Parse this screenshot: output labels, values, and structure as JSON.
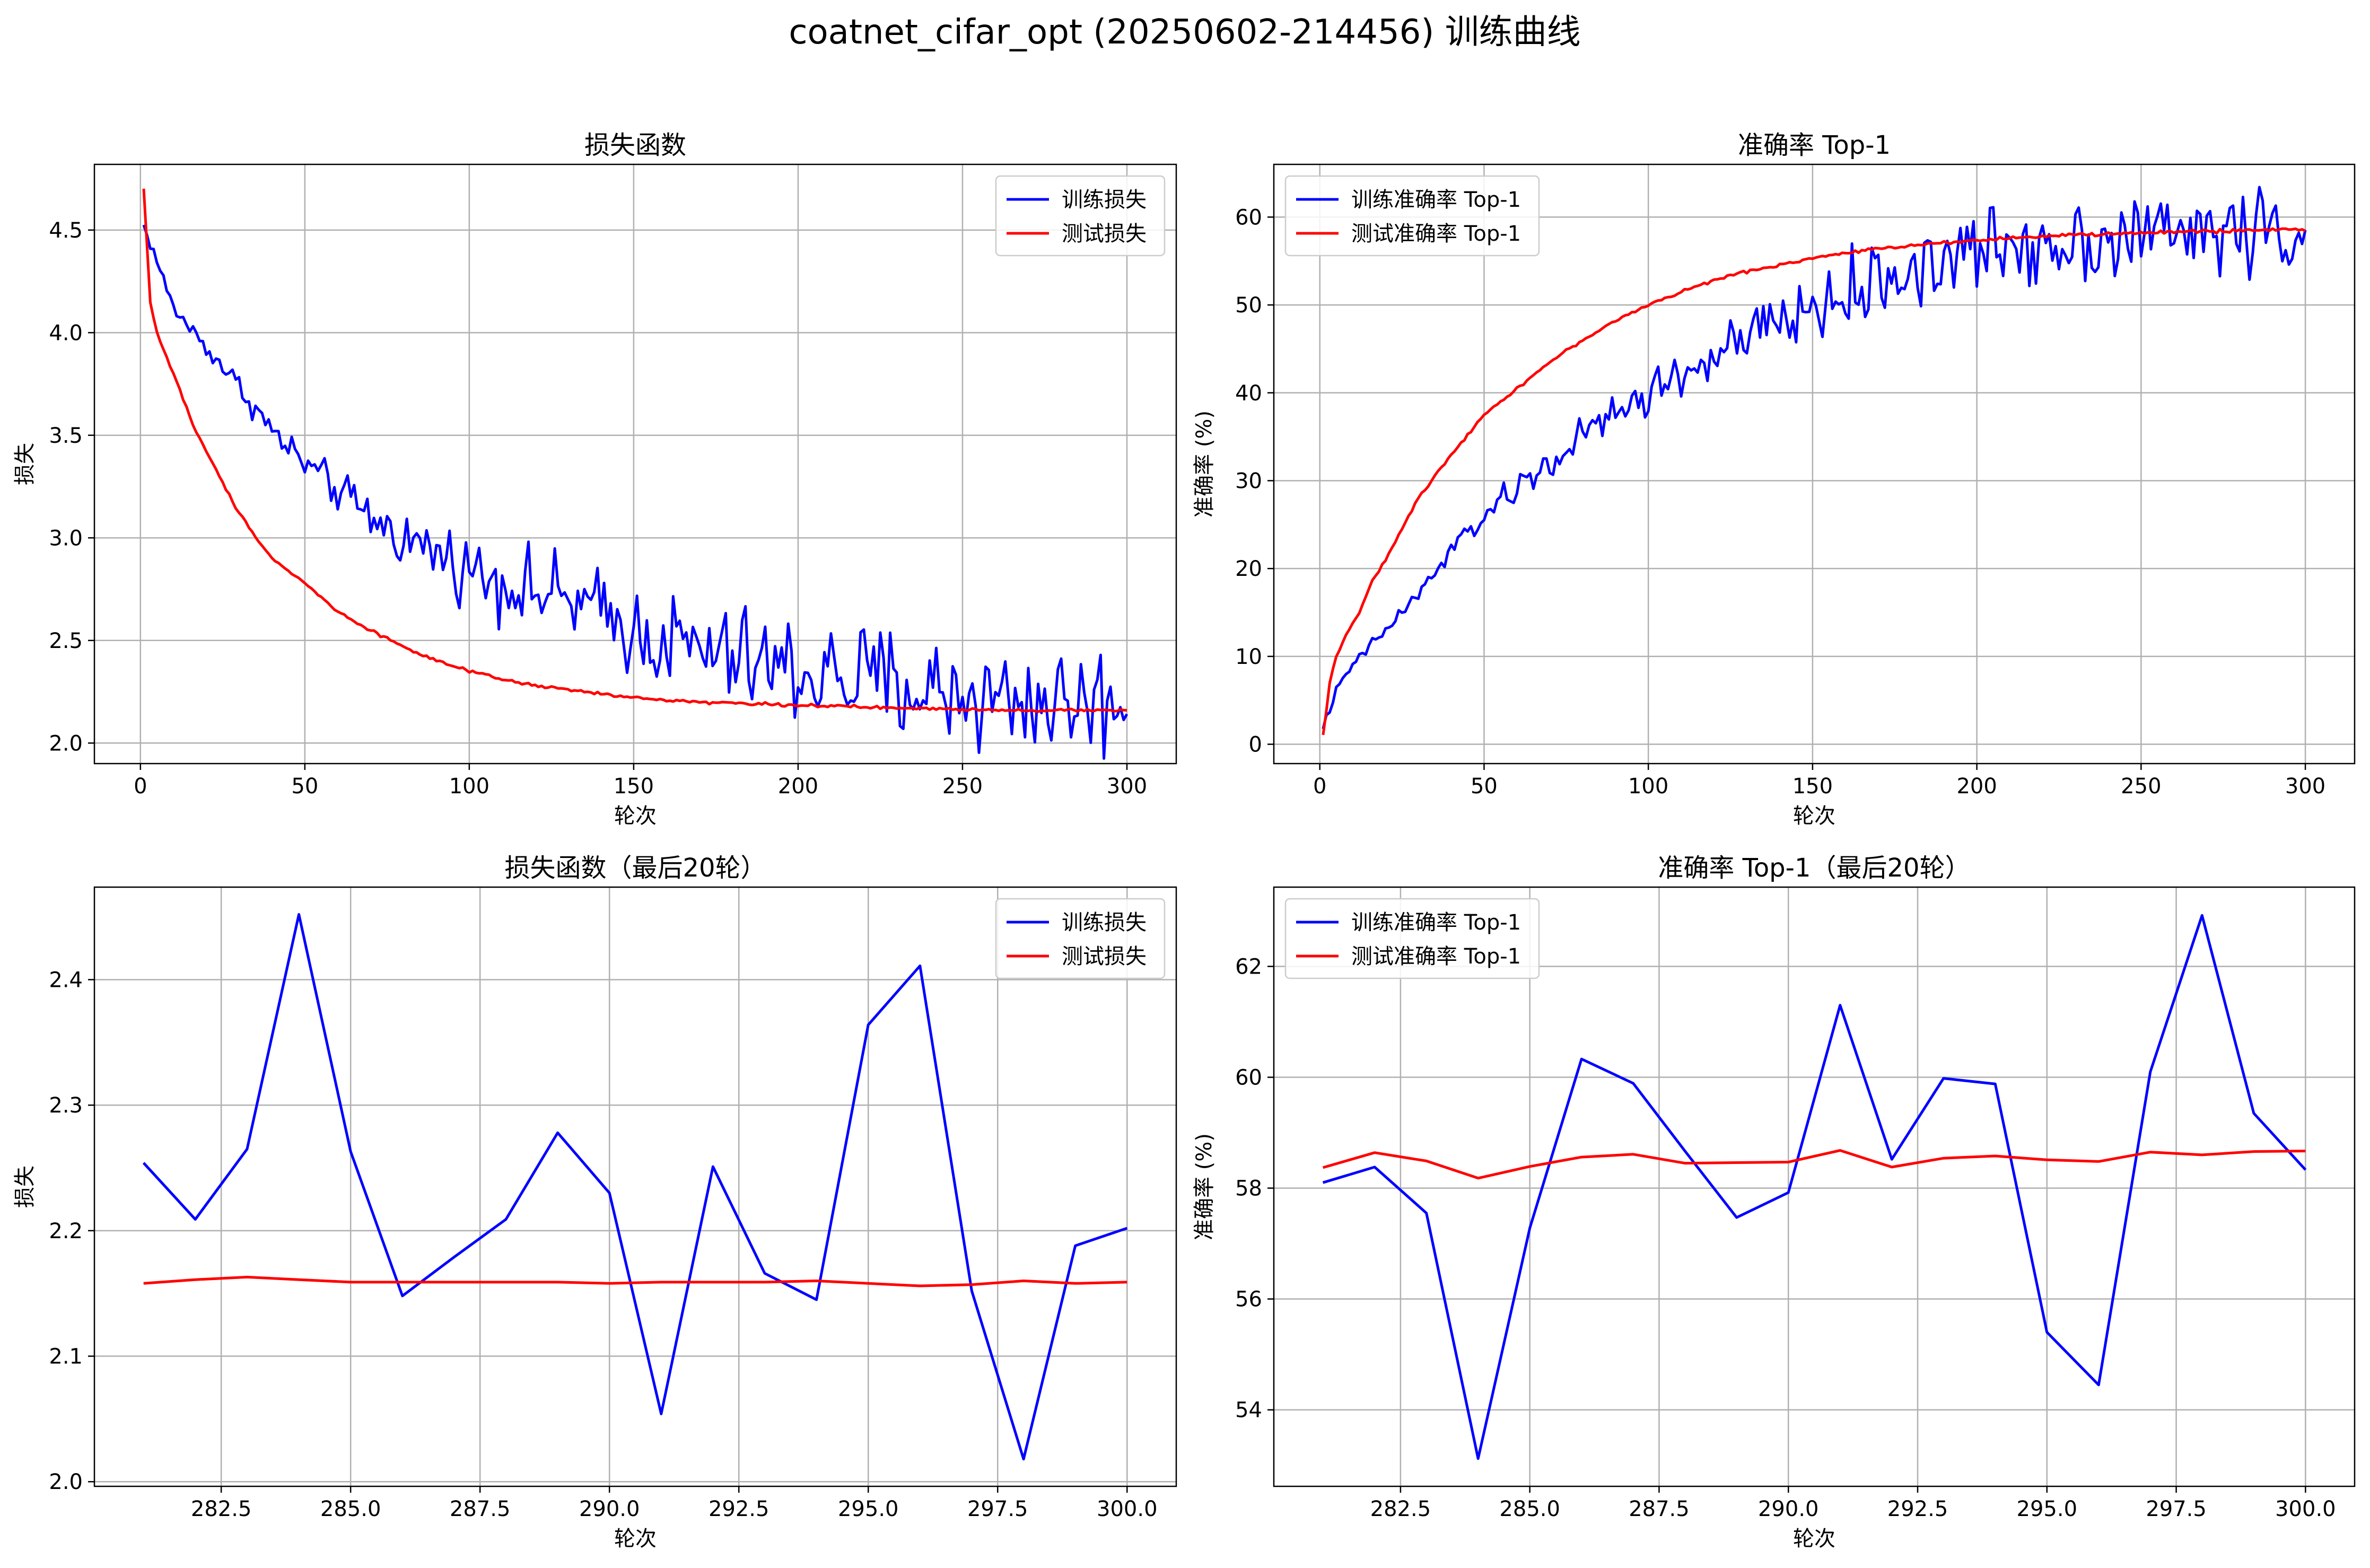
{
  "figure": {
    "title": "coatnet_cifar_opt (20250602-214456) 训练曲线"
  },
  "colors": {
    "train": "#0000ff",
    "test": "#ff0000",
    "grid": "#b0b0b0"
  },
  "chart_data": [
    {
      "id": "loss-full",
      "type": "line",
      "title": "损失函数",
      "xlabel": "轮次",
      "ylabel": "损失",
      "xlim": [
        -14,
        315
      ],
      "ylim": [
        1.9,
        4.82
      ],
      "xticks": [
        0,
        50,
        100,
        150,
        200,
        250,
        300
      ],
      "yticks": [
        2.0,
        2.5,
        3.0,
        3.5,
        4.0,
        4.5
      ],
      "ytick_labels": [
        "2.0",
        "2.5",
        "3.0",
        "3.5",
        "4.0",
        "4.5"
      ],
      "grid": true,
      "legend": "top-right",
      "kind": "loss-full",
      "series": [
        {
          "name": "训练损失",
          "color": "#0000ff",
          "anchors": [
            [
              1,
              4.52
            ],
            [
              5,
              4.35
            ],
            [
              10,
              4.12
            ],
            [
              20,
              3.93
            ],
            [
              30,
              3.74
            ],
            [
              40,
              3.52
            ],
            [
              50,
              3.36
            ],
            [
              60,
              3.23
            ],
            [
              70,
              3.1
            ],
            [
              80,
              3.0
            ],
            [
              90,
              2.93
            ],
            [
              100,
              2.85
            ],
            [
              110,
              2.79
            ],
            [
              120,
              2.74
            ],
            [
              130,
              2.7
            ],
            [
              140,
              2.63
            ],
            [
              150,
              2.55
            ],
            [
              160,
              2.5
            ],
            [
              170,
              2.45
            ],
            [
              180,
              2.41
            ],
            [
              190,
              2.38
            ],
            [
              200,
              2.35
            ],
            [
              210,
              2.33
            ],
            [
              220,
              2.31
            ],
            [
              230,
              2.28
            ],
            [
              240,
              2.26
            ],
            [
              250,
              2.24
            ],
            [
              260,
              2.22
            ],
            [
              270,
              2.21
            ],
            [
              280,
              2.2
            ],
            [
              290,
              2.2
            ],
            [
              300,
              2.2
            ]
          ],
          "noise": [
            [
              0,
              0.02
            ],
            [
              50,
              0.06
            ],
            [
              100,
              0.12
            ],
            [
              150,
              0.16
            ],
            [
              200,
              0.2
            ],
            [
              300,
              0.2
            ]
          ]
        },
        {
          "name": "测试损失",
          "color": "#ff0000",
          "anchors": [
            [
              1,
              4.7
            ],
            [
              3,
              4.15
            ],
            [
              5,
              4.0
            ],
            [
              8,
              3.88
            ],
            [
              12,
              3.72
            ],
            [
              16,
              3.55
            ],
            [
              20,
              3.42
            ],
            [
              30,
              3.12
            ],
            [
              40,
              2.9
            ],
            [
              50,
              2.78
            ],
            [
              60,
              2.64
            ],
            [
              70,
              2.55
            ],
            [
              80,
              2.47
            ],
            [
              90,
              2.4
            ],
            [
              100,
              2.35
            ],
            [
              110,
              2.31
            ],
            [
              120,
              2.28
            ],
            [
              130,
              2.26
            ],
            [
              140,
              2.24
            ],
            [
              150,
              2.22
            ],
            [
              170,
              2.2
            ],
            [
              190,
              2.19
            ],
            [
              210,
              2.18
            ],
            [
              230,
              2.17
            ],
            [
              250,
              2.165
            ],
            [
              270,
              2.16
            ],
            [
              300,
              2.16
            ]
          ],
          "noise": [
            [
              0,
              0.005
            ],
            [
              300,
              0.005
            ]
          ]
        }
      ]
    },
    {
      "id": "acc-full",
      "type": "line",
      "title": "准确率 Top-1",
      "xlabel": "轮次",
      "ylabel": "准确率 (%)",
      "xlim": [
        -14,
        315
      ],
      "ylim": [
        -2.2,
        66
      ],
      "xticks": [
        0,
        50,
        100,
        150,
        200,
        250,
        300
      ],
      "yticks": [
        0,
        10,
        20,
        30,
        40,
        50,
        60
      ],
      "ytick_labels": [
        "0",
        "10",
        "20",
        "30",
        "40",
        "50",
        "60"
      ],
      "grid": true,
      "legend": "top-left",
      "kind": "acc-full",
      "series": [
        {
          "name": "训练准确率 Top-1",
          "color": "#0000ff",
          "anchors": [
            [
              1,
              2
            ],
            [
              5,
              6
            ],
            [
              10,
              9
            ],
            [
              20,
              13
            ],
            [
              30,
              17
            ],
            [
              40,
              22
            ],
            [
              50,
              26
            ],
            [
              60,
              29
            ],
            [
              70,
              32
            ],
            [
              80,
              35
            ],
            [
              90,
              37.5
            ],
            [
              100,
              40
            ],
            [
              110,
              42
            ],
            [
              120,
              44
            ],
            [
              130,
              46
            ],
            [
              140,
              48
            ],
            [
              150,
              49.5
            ],
            [
              160,
              51
            ],
            [
              170,
              52.5
            ],
            [
              180,
              54
            ],
            [
              190,
              55
            ],
            [
              200,
              56
            ],
            [
              210,
              56.7
            ],
            [
              220,
              57.2
            ],
            [
              230,
              57.5
            ],
            [
              240,
              57.8
            ],
            [
              250,
              58
            ],
            [
              260,
              58.2
            ],
            [
              270,
              58.4
            ],
            [
              280,
              58.5
            ],
            [
              290,
              58.5
            ],
            [
              300,
              58.5
            ]
          ],
          "noise": [
            [
              0,
              0.3
            ],
            [
              50,
              1.0
            ],
            [
              100,
              2.0
            ],
            [
              150,
              2.8
            ],
            [
              200,
              3.5
            ],
            [
              300,
              3.5
            ]
          ]
        },
        {
          "name": "测试准确率 Top-1",
          "color": "#ff0000",
          "anchors": [
            [
              1,
              1
            ],
            [
              3,
              7
            ],
            [
              5,
              10
            ],
            [
              8,
              12.5
            ],
            [
              12,
              15
            ],
            [
              16,
              18.5
            ],
            [
              20,
              21
            ],
            [
              30,
              28
            ],
            [
              40,
              33
            ],
            [
              50,
              37.5
            ],
            [
              60,
              40.5
            ],
            [
              70,
              43.5
            ],
            [
              80,
              46
            ],
            [
              90,
              48.2
            ],
            [
              100,
              50
            ],
            [
              110,
              51.5
            ],
            [
              120,
              52.8
            ],
            [
              130,
              53.8
            ],
            [
              140,
              54.6
            ],
            [
              150,
              55.3
            ],
            [
              160,
              55.9
            ],
            [
              170,
              56.4
            ],
            [
              180,
              56.8
            ],
            [
              190,
              57.1
            ],
            [
              200,
              57.4
            ],
            [
              220,
              57.8
            ],
            [
              240,
              58.1
            ],
            [
              260,
              58.3
            ],
            [
              280,
              58.5
            ],
            [
              300,
              58.6
            ]
          ],
          "noise": [
            [
              0,
              0.1
            ],
            [
              300,
              0.15
            ]
          ]
        }
      ]
    },
    {
      "id": "loss-last20",
      "type": "line",
      "title": "损失函数（最后20轮）",
      "xlabel": "轮次",
      "ylabel": "损失",
      "xlim": [
        280.05,
        300.95
      ],
      "ylim": [
        1.9963,
        2.4737
      ],
      "xticks": [
        282.5,
        285.0,
        287.5,
        290.0,
        292.5,
        295.0,
        297.5,
        300.0
      ],
      "xtick_labels": [
        "282.5",
        "285.0",
        "287.5",
        "290.0",
        "292.5",
        "295.0",
        "297.5",
        "300.0"
      ],
      "yticks": [
        2.0,
        2.1,
        2.2,
        2.3,
        2.4
      ],
      "ytick_labels": [
        "2.0",
        "2.1",
        "2.2",
        "2.3",
        "2.4"
      ],
      "grid": true,
      "legend": "top-right",
      "kind": "exact",
      "x": [
        281,
        282,
        283,
        284,
        285,
        286,
        287,
        288,
        289,
        290,
        291,
        292,
        293,
        294,
        295,
        296,
        297,
        298,
        299,
        300
      ],
      "series": [
        {
          "name": "训练损失",
          "color": "#0000ff",
          "values": [
            2.254,
            2.209,
            2.265,
            2.452,
            2.263,
            2.148,
            2.179,
            2.209,
            2.278,
            2.23,
            2.054,
            2.251,
            2.166,
            2.145,
            2.364,
            2.411,
            2.152,
            2.018,
            2.188,
            2.202
          ]
        },
        {
          "name": "测试损失",
          "color": "#ff0000",
          "values": [
            2.158,
            2.161,
            2.163,
            2.161,
            2.159,
            2.159,
            2.159,
            2.159,
            2.159,
            2.158,
            2.159,
            2.159,
            2.159,
            2.16,
            2.158,
            2.156,
            2.157,
            2.16,
            2.158,
            2.159
          ]
        }
      ]
    },
    {
      "id": "acc-last20",
      "type": "line",
      "title": "准确率 Top-1（最后20轮）",
      "xlabel": "轮次",
      "ylabel": "准确率 (%)",
      "xlim": [
        280.05,
        300.95
      ],
      "ylim": [
        52.62,
        63.43
      ],
      "xticks": [
        282.5,
        285.0,
        287.5,
        290.0,
        292.5,
        295.0,
        297.5,
        300.0
      ],
      "xtick_labels": [
        "282.5",
        "285.0",
        "287.5",
        "290.0",
        "292.5",
        "295.0",
        "297.5",
        "300.0"
      ],
      "yticks": [
        54,
        56,
        58,
        60,
        62
      ],
      "ytick_labels": [
        "54",
        "56",
        "58",
        "60",
        "62"
      ],
      "grid": true,
      "legend": "top-left",
      "kind": "exact",
      "x": [
        281,
        282,
        283,
        284,
        285,
        286,
        287,
        288,
        289,
        290,
        291,
        292,
        293,
        294,
        295,
        296,
        297,
        298,
        299,
        300
      ],
      "series": [
        {
          "name": "训练准确率 Top-1",
          "color": "#0000ff",
          "values": [
            58.1,
            58.38,
            57.55,
            53.12,
            57.28,
            60.33,
            59.89,
            58.67,
            57.47,
            57.92,
            61.3,
            58.52,
            59.98,
            59.88,
            55.4,
            54.45,
            60.1,
            62.92,
            59.35,
            58.33
          ]
        },
        {
          "name": "测试准确率 Top-1",
          "color": "#ff0000",
          "values": [
            58.37,
            58.64,
            58.49,
            58.18,
            58.39,
            58.56,
            58.61,
            58.45,
            58.46,
            58.47,
            58.68,
            58.38,
            58.54,
            58.58,
            58.51,
            58.48,
            58.65,
            58.6,
            58.66,
            58.67
          ]
        }
      ]
    }
  ]
}
